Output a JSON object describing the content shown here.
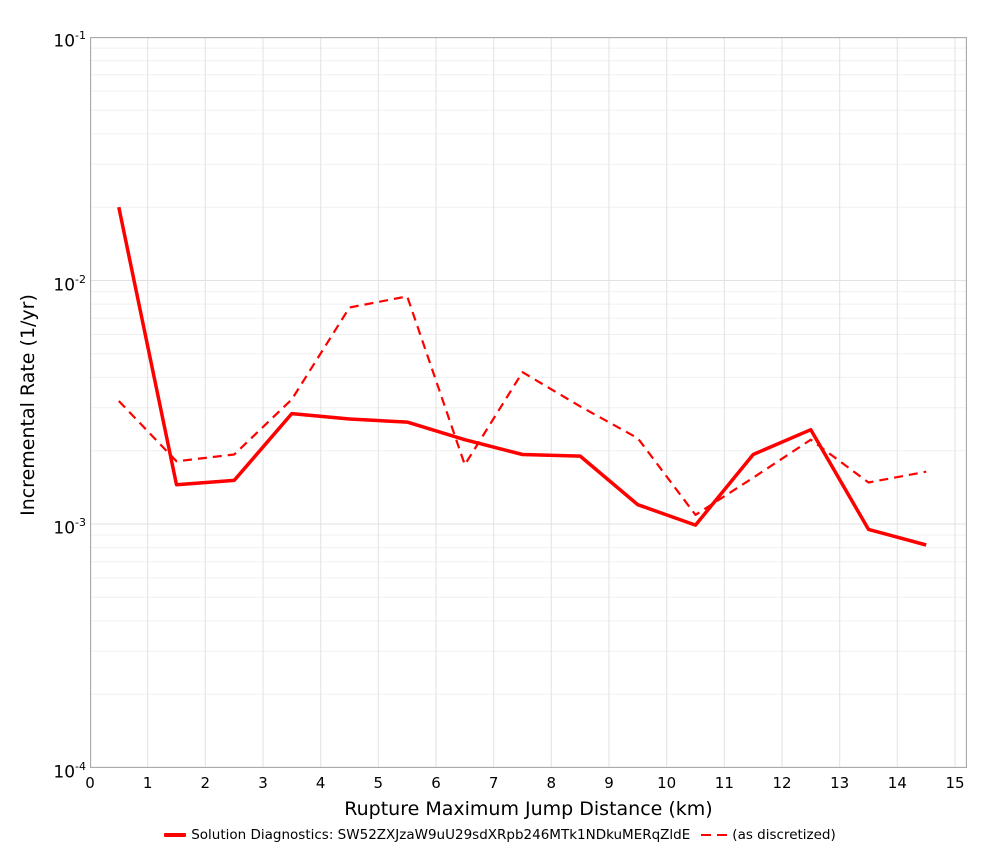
{
  "colors": {
    "series_red": "#ff0000",
    "plot_border": "#ababab",
    "grid_major": "#e2e2e2",
    "grid_minor": "#f0f0f0",
    "background": "#ffffff",
    "text": "#000000"
  },
  "chart_data": {
    "type": "line",
    "title": "",
    "xlabel": "Rupture Maximum Jump Distance (km)",
    "ylabel": "Incremental Rate (1/yr)",
    "x_scale": "linear",
    "y_scale": "log",
    "xlim": [
      0,
      15.21
    ],
    "ylim": [
      0.0001,
      0.1
    ],
    "grid": true,
    "x_ticks": [
      0,
      1,
      2,
      3,
      4,
      5,
      6,
      7,
      8,
      9,
      10,
      11,
      12,
      13,
      14,
      15
    ],
    "y_tick_exponents": [
      "-1",
      "-2",
      "-3",
      "-4"
    ],
    "x": [
      0.5,
      1.5,
      2.5,
      3.5,
      4.5,
      5.5,
      6.5,
      7.5,
      8.5,
      9.5,
      10.5,
      11.5,
      12.5,
      13.5,
      14.5
    ],
    "series": [
      {
        "name": "Solution Diagnostics: SW52ZXJzaW9uU29sdXRpb246MTk1NDkuMERqZldE",
        "style": "solid",
        "color": "#ff0000",
        "stroke_width": 3.5,
        "values": [
          0.02,
          0.00145,
          0.00151,
          0.00284,
          0.0027,
          0.00262,
          0.00222,
          0.00193,
          0.0019,
          0.0012,
          0.00099,
          0.00193,
          0.00244,
          0.00095,
          0.00082
        ]
      },
      {
        "name": "(as discretized)",
        "style": "dashed",
        "color": "#ff0000",
        "stroke_width": 2.2,
        "values": [
          0.0032,
          0.00181,
          0.00193,
          0.00325,
          0.00775,
          0.0086,
          0.00175,
          0.0042,
          0.00304,
          0.00225,
          0.00109,
          0.00155,
          0.00222,
          0.00148,
          0.00164
        ]
      }
    ],
    "legend_position": "bottom-center"
  }
}
